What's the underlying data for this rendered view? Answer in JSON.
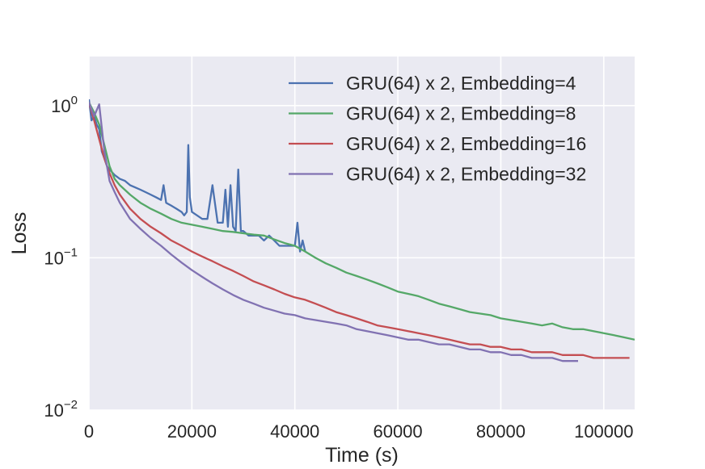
{
  "chart_data": {
    "type": "line",
    "title": "",
    "xlabel": "Time (s)",
    "ylabel": "Loss",
    "xlim": [
      0,
      106000
    ],
    "ylim": [
      0.01,
      2.1
    ],
    "yscale": "log",
    "grid": true,
    "legend_position": "top-right",
    "x_ticks": [
      {
        "value": 0,
        "label": "0"
      },
      {
        "value": 20000,
        "label": "20000"
      },
      {
        "value": 40000,
        "label": "40000"
      },
      {
        "value": 60000,
        "label": "60000"
      },
      {
        "value": 80000,
        "label": "80000"
      },
      {
        "value": 100000,
        "label": "100000"
      }
    ],
    "y_ticks": [
      {
        "value": 1,
        "base": "10",
        "exp": "0"
      },
      {
        "value": 0.1,
        "base": "10",
        "exp": "−1"
      },
      {
        "value": 0.01,
        "base": "10",
        "exp": "−2"
      }
    ],
    "series": [
      {
        "name": "GRU(64) x 2, Embedding=4",
        "color": "#4c72b0",
        "x": [
          0,
          500,
          1000,
          1500,
          2000,
          2500,
          3000,
          3500,
          4000,
          5000,
          6000,
          7000,
          8000,
          9000,
          10000,
          11000,
          12000,
          13000,
          14000,
          14500,
          15000,
          16000,
          17000,
          18000,
          18500,
          19000,
          19300,
          19600,
          20000,
          21000,
          22000,
          23000,
          24000,
          25000,
          26000,
          26500,
          27000,
          27500,
          28000,
          28500,
          29000,
          29500,
          30000,
          31000,
          32000,
          33000,
          34000,
          35000,
          36000,
          37000,
          38000,
          39000,
          40000,
          40500,
          41000,
          41500,
          42000
        ],
        "y": [
          1.1,
          0.8,
          0.85,
          0.75,
          0.7,
          0.5,
          0.45,
          0.4,
          0.38,
          0.35,
          0.33,
          0.32,
          0.3,
          0.29,
          0.28,
          0.27,
          0.26,
          0.25,
          0.24,
          0.3,
          0.23,
          0.22,
          0.21,
          0.2,
          0.19,
          0.2,
          0.55,
          0.25,
          0.2,
          0.19,
          0.18,
          0.18,
          0.3,
          0.17,
          0.17,
          0.28,
          0.16,
          0.3,
          0.16,
          0.15,
          0.38,
          0.15,
          0.15,
          0.14,
          0.14,
          0.14,
          0.13,
          0.14,
          0.13,
          0.12,
          0.12,
          0.12,
          0.12,
          0.17,
          0.11,
          0.13,
          0.11
        ]
      },
      {
        "name": "GRU(64) x 2, Embedding=8",
        "color": "#55a868",
        "x": [
          0,
          1000,
          2000,
          3000,
          4000,
          5000,
          6000,
          8000,
          10000,
          12000,
          14000,
          16000,
          18000,
          20000,
          22000,
          24000,
          26000,
          28000,
          30000,
          32000,
          34000,
          36000,
          38000,
          40000,
          42000,
          44000,
          46000,
          48000,
          50000,
          52000,
          54000,
          56000,
          58000,
          60000,
          62000,
          64000,
          66000,
          68000,
          70000,
          72000,
          74000,
          76000,
          78000,
          80000,
          82000,
          84000,
          86000,
          88000,
          90000,
          92000,
          94000,
          96000,
          98000,
          100000,
          102000,
          104000,
          106000
        ],
        "y": [
          1.05,
          0.9,
          0.75,
          0.55,
          0.4,
          0.33,
          0.3,
          0.26,
          0.23,
          0.21,
          0.195,
          0.18,
          0.17,
          0.165,
          0.16,
          0.155,
          0.15,
          0.148,
          0.145,
          0.142,
          0.14,
          0.132,
          0.125,
          0.12,
          0.11,
          0.1,
          0.092,
          0.086,
          0.08,
          0.076,
          0.072,
          0.068,
          0.064,
          0.06,
          0.058,
          0.056,
          0.053,
          0.05,
          0.048,
          0.046,
          0.044,
          0.043,
          0.042,
          0.04,
          0.039,
          0.038,
          0.037,
          0.036,
          0.037,
          0.035,
          0.034,
          0.034,
          0.033,
          0.032,
          0.031,
          0.03,
          0.029
        ]
      },
      {
        "name": "GRU(64) x 2, Embedding=16",
        "color": "#c44e52",
        "x": [
          0,
          1000,
          2000,
          3000,
          4000,
          5000,
          6000,
          8000,
          10000,
          12000,
          14000,
          16000,
          18000,
          20000,
          22000,
          24000,
          26000,
          28000,
          30000,
          32000,
          34000,
          36000,
          38000,
          40000,
          42000,
          44000,
          46000,
          48000,
          50000,
          52000,
          54000,
          56000,
          58000,
          60000,
          62000,
          64000,
          66000,
          68000,
          70000,
          72000,
          74000,
          76000,
          78000,
          80000,
          82000,
          84000,
          86000,
          88000,
          90000,
          92000,
          94000,
          96000,
          98000,
          100000,
          102000,
          104000,
          105000
        ],
        "y": [
          1.05,
          0.8,
          0.6,
          0.45,
          0.36,
          0.3,
          0.26,
          0.21,
          0.18,
          0.16,
          0.145,
          0.13,
          0.12,
          0.11,
          0.102,
          0.095,
          0.088,
          0.082,
          0.076,
          0.07,
          0.066,
          0.062,
          0.058,
          0.055,
          0.053,
          0.05,
          0.047,
          0.044,
          0.042,
          0.04,
          0.038,
          0.036,
          0.035,
          0.034,
          0.033,
          0.032,
          0.031,
          0.03,
          0.029,
          0.028,
          0.027,
          0.027,
          0.026,
          0.026,
          0.025,
          0.025,
          0.024,
          0.024,
          0.024,
          0.023,
          0.023,
          0.023,
          0.022,
          0.022,
          0.022,
          0.022,
          0.022
        ]
      },
      {
        "name": "GRU(64) x 2, Embedding=32",
        "color": "#8172b2",
        "x": [
          0,
          1000,
          2000,
          3000,
          4000,
          5000,
          6000,
          8000,
          10000,
          12000,
          14000,
          16000,
          18000,
          20000,
          22000,
          24000,
          26000,
          28000,
          30000,
          32000,
          34000,
          36000,
          38000,
          40000,
          42000,
          44000,
          46000,
          48000,
          50000,
          52000,
          54000,
          56000,
          58000,
          60000,
          62000,
          64000,
          66000,
          68000,
          70000,
          72000,
          74000,
          76000,
          78000,
          80000,
          82000,
          84000,
          86000,
          88000,
          90000,
          92000,
          94000,
          95000
        ],
        "y": [
          1.05,
          0.85,
          1.02,
          0.5,
          0.32,
          0.27,
          0.23,
          0.18,
          0.155,
          0.135,
          0.12,
          0.105,
          0.093,
          0.083,
          0.075,
          0.068,
          0.062,
          0.057,
          0.053,
          0.05,
          0.047,
          0.045,
          0.043,
          0.042,
          0.04,
          0.039,
          0.038,
          0.037,
          0.036,
          0.034,
          0.033,
          0.032,
          0.031,
          0.03,
          0.029,
          0.029,
          0.028,
          0.027,
          0.027,
          0.026,
          0.025,
          0.025,
          0.024,
          0.024,
          0.023,
          0.023,
          0.022,
          0.022,
          0.022,
          0.021,
          0.021,
          0.021
        ]
      }
    ]
  }
}
